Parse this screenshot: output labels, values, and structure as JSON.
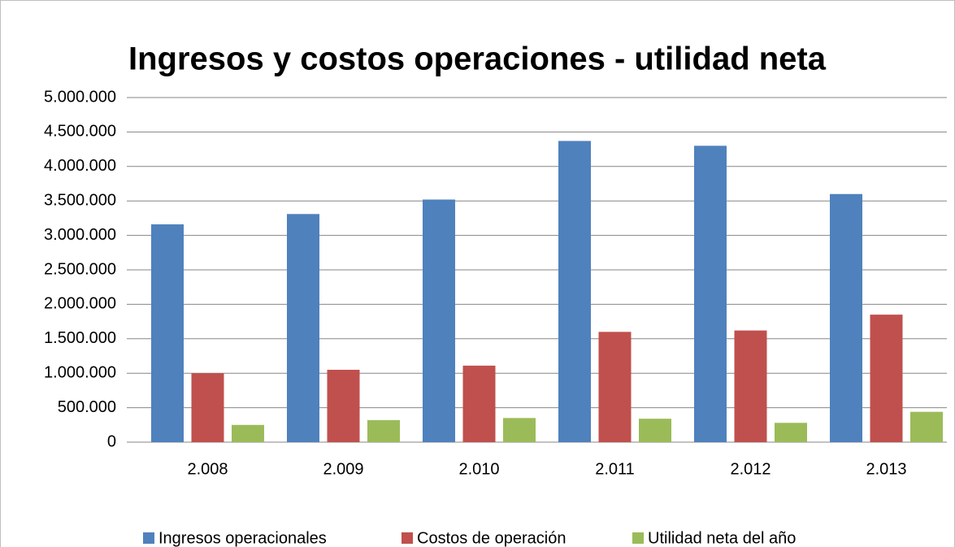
{
  "chart_data": {
    "type": "bar",
    "title": "Ingresos y costos operaciones - utilidad neta",
    "categories": [
      "2.008",
      "2.009",
      "2.010",
      "2.011",
      "2.012",
      "2.013"
    ],
    "series": [
      {
        "name": "Ingresos operacionales",
        "color": "#4f81bd",
        "values": [
          3160000,
          3310000,
          3520000,
          4370000,
          4300000,
          3600000
        ]
      },
      {
        "name": "Costos de operación",
        "color": "#c0504d",
        "values": [
          1000000,
          1050000,
          1110000,
          1600000,
          1620000,
          1850000
        ]
      },
      {
        "name": "Utilidad neta del año",
        "color": "#9bbb59",
        "values": [
          250000,
          320000,
          350000,
          340000,
          280000,
          440000
        ]
      }
    ],
    "ylim": [
      0,
      5000000
    ],
    "yticks": [
      0,
      {
        "value": 500000,
        "label": "500.000"
      },
      {
        "value": 1000000,
        "label": "1.000.000"
      },
      {
        "value": 1500000,
        "label": "1.500.000"
      },
      {
        "value": 2000000,
        "label": "2.000.000"
      },
      {
        "value": 2500000,
        "label": "2.500.000"
      },
      {
        "value": 3000000,
        "label": "3.000.000"
      },
      {
        "value": 3500000,
        "label": "3.500.000"
      },
      {
        "value": 4000000,
        "label": "4.000.000"
      },
      {
        "value": 4500000,
        "label": "4.500.000"
      },
      {
        "value": 5000000,
        "label": "5.000.000"
      }
    ],
    "grid": true,
    "legend": "bottom"
  }
}
